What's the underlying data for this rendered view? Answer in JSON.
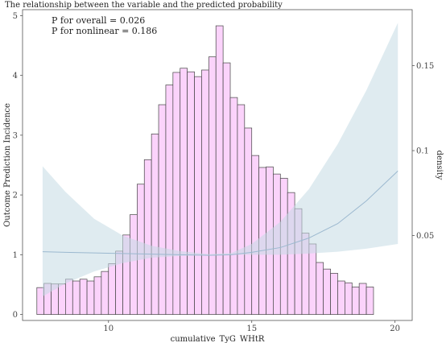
{
  "chart_data": {
    "type": "bar",
    "title": "The relationship between the variable and the predicted probability",
    "xlabel": "cumulative_TyG_WHtR",
    "ylabel": "Outcome Prediction Incidence",
    "y2label": "density",
    "annotations": [
      "P for overall = 0.026",
      "P for nonlinear = 0.186"
    ],
    "xlim": [
      7.0,
      20.6
    ],
    "ylim": [
      -0.1,
      5.1
    ],
    "y2lim": [
      0.0,
      0.183
    ],
    "xticks": [
      10,
      15,
      20
    ],
    "yticks": [
      0,
      1,
      2,
      3,
      4,
      5
    ],
    "y2ticks": [
      0.05,
      0.1,
      0.15
    ],
    "grid": false,
    "colors": {
      "bar_fill": "#fbd3fb",
      "bar_stroke": "#444444",
      "ribbon": "#c5dbe3",
      "line": "#9bb8cf"
    },
    "histogram": {
      "x_start": 7.5,
      "bin_width": 0.25,
      "heights": [
        0.45,
        0.52,
        0.51,
        0.51,
        0.59,
        0.56,
        0.59,
        0.56,
        0.63,
        0.72,
        0.85,
        1.06,
        1.33,
        1.67,
        2.18,
        2.59,
        3.02,
        3.51,
        3.84,
        4.05,
        4.12,
        4.06,
        3.98,
        4.09,
        4.31,
        4.83,
        4.21,
        3.63,
        3.51,
        3.12,
        2.66,
        2.46,
        2.47,
        2.35,
        2.28,
        2.04,
        1.77,
        1.36,
        1.18,
        0.87,
        0.76,
        0.69,
        0.56,
        0.53,
        0.46,
        0.52,
        0.46
      ]
    },
    "spline": {
      "x": [
        7.7,
        8.5,
        9.5,
        10.5,
        11.5,
        12.5,
        13.5,
        14.3,
        15.0,
        16.0,
        17.0,
        18.0,
        19.0,
        20.1
      ],
      "y": [
        1.05,
        1.04,
        1.03,
        1.02,
        1.01,
        1.0,
        0.99,
        1.0,
        1.04,
        1.12,
        1.28,
        1.52,
        1.9,
        2.4
      ],
      "lower": [
        0.3,
        0.52,
        0.72,
        0.86,
        0.95,
        0.98,
        0.99,
        1.0,
        1.0,
        1.0,
        1.02,
        1.05,
        1.1,
        1.18
      ],
      "upper": [
        2.48,
        2.05,
        1.6,
        1.32,
        1.15,
        1.06,
        1.01,
        1.03,
        1.18,
        1.55,
        2.1,
        2.85,
        3.75,
        4.88
      ]
    }
  }
}
